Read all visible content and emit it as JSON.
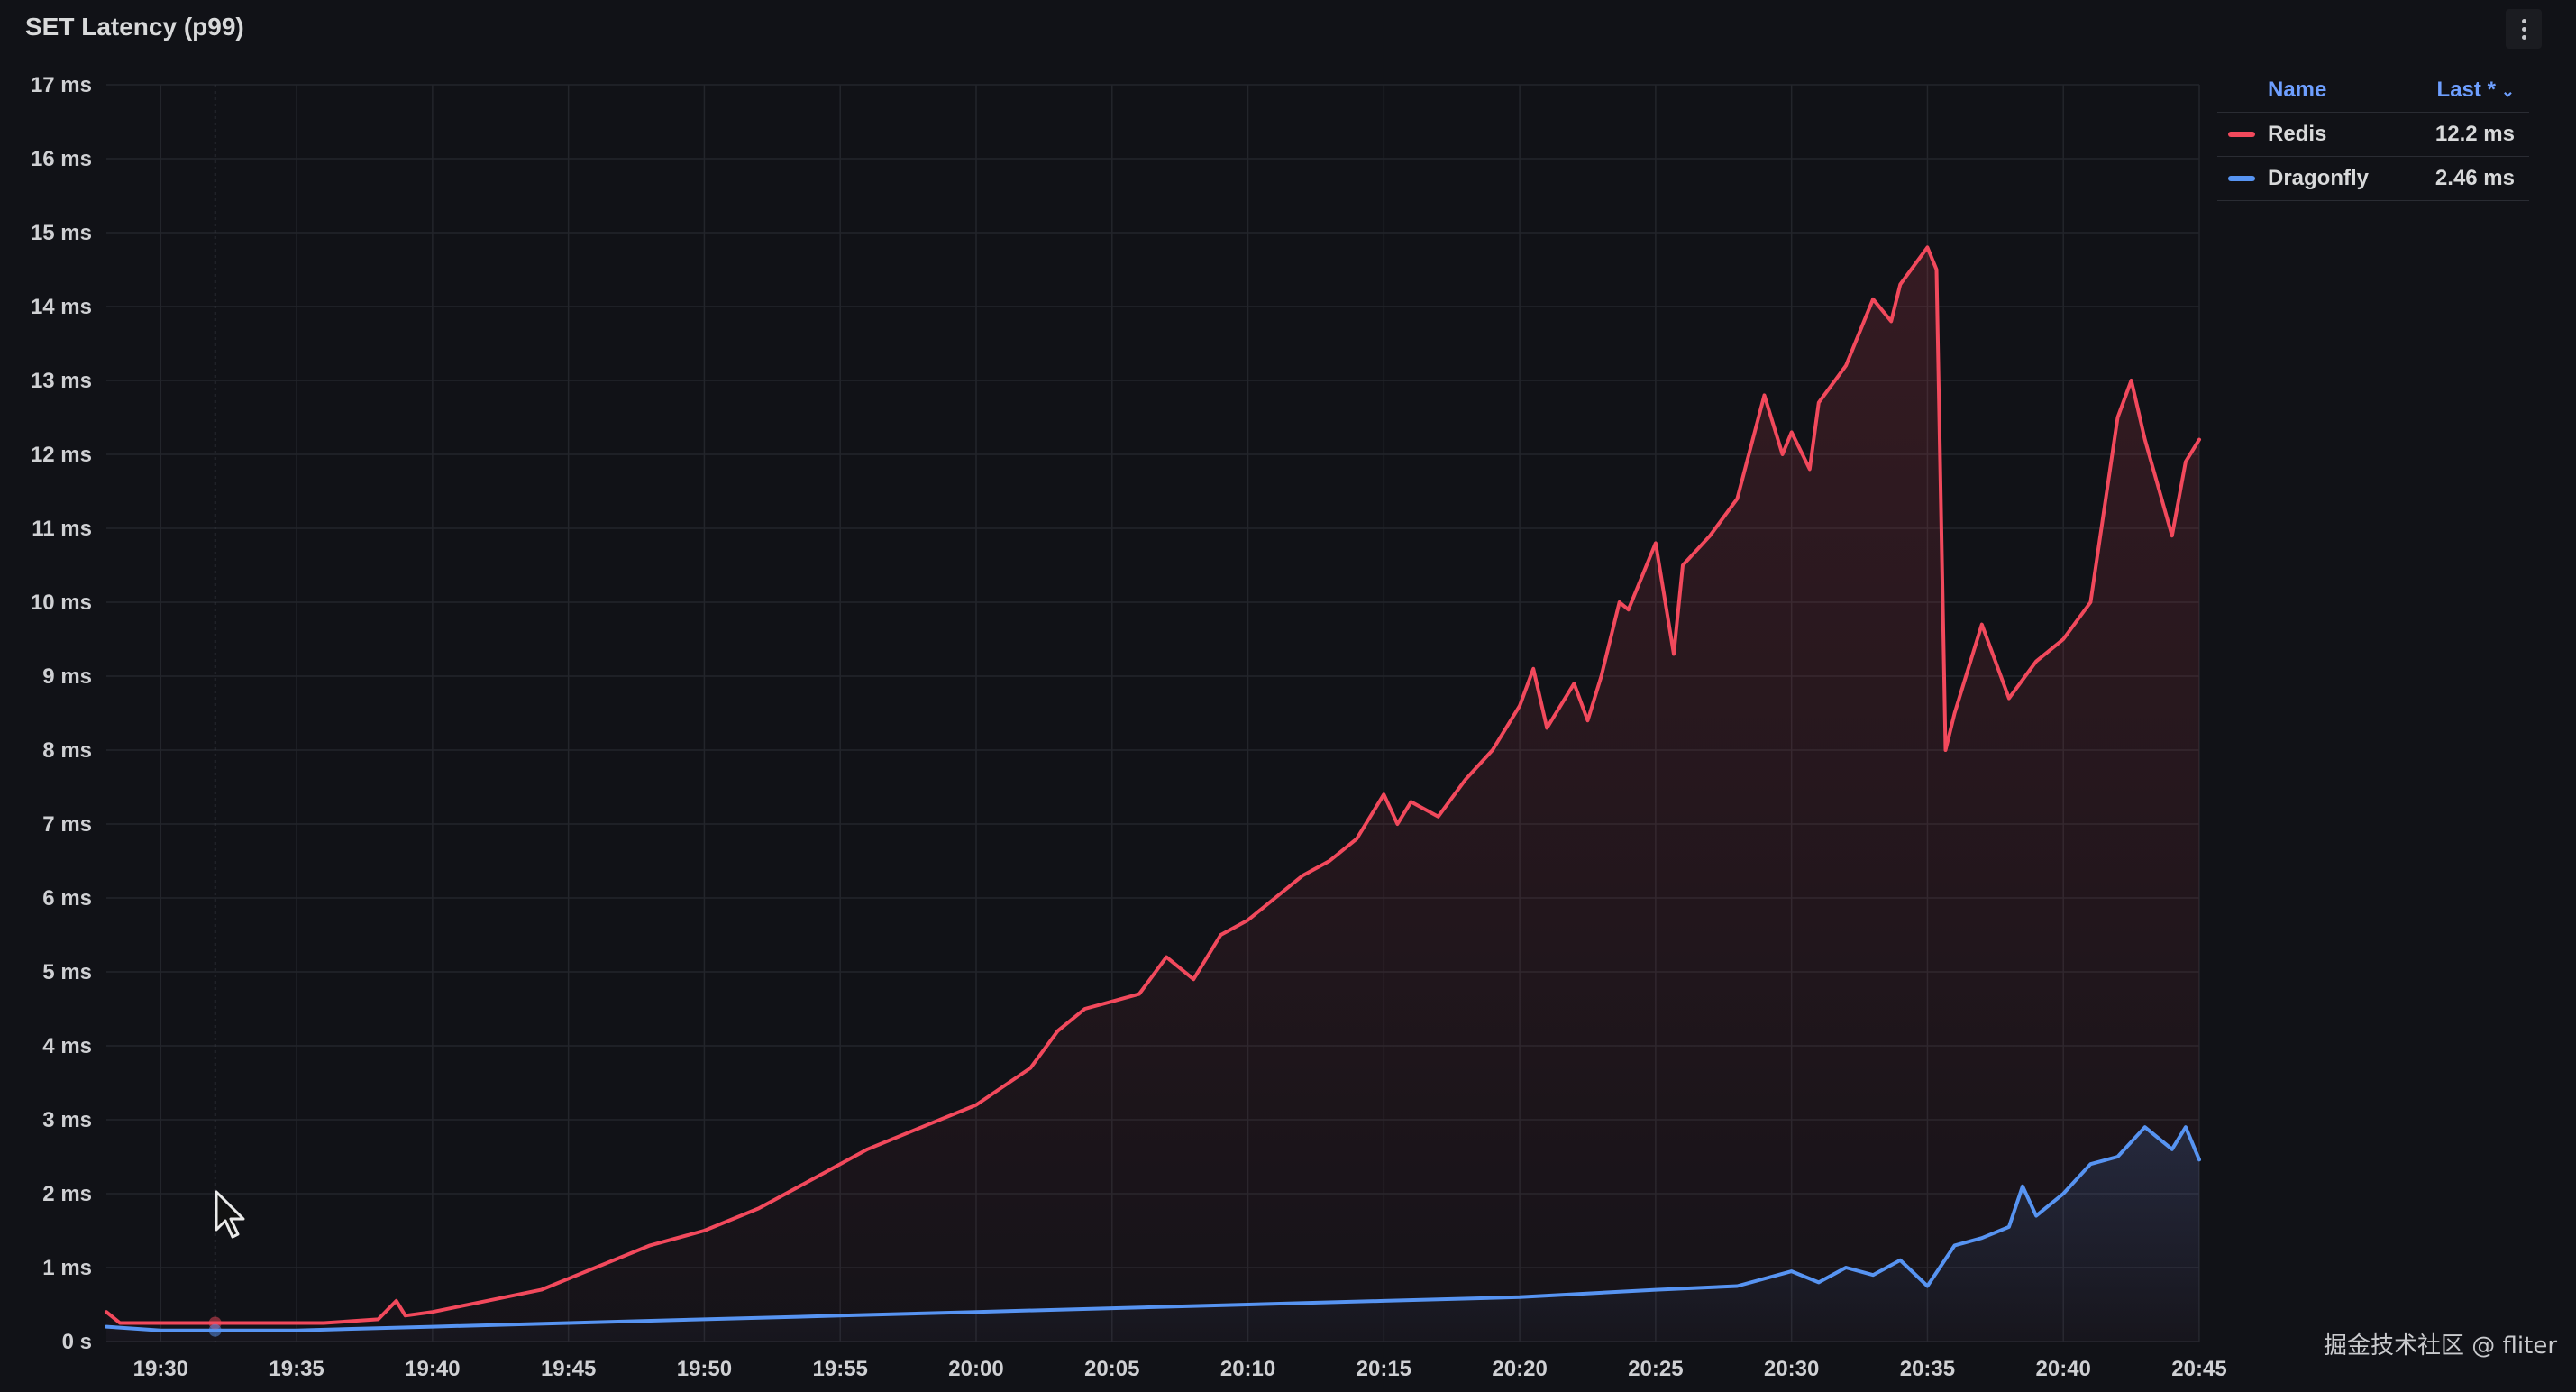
{
  "panel": {
    "title": "SET Latency (p99)"
  },
  "legend": {
    "name_header": "Name",
    "last_header": "Last *",
    "sort_icon": "chevron-down-icon",
    "series": [
      {
        "name": "Redis",
        "last": "12.2 ms",
        "color": "#f2495c"
      },
      {
        "name": "Dragonfly",
        "last": "2.46 ms",
        "color": "#5794f2"
      }
    ]
  },
  "watermark": "掘金技术社区 @ fliter",
  "chart_data": {
    "type": "line",
    "title": "SET Latency (p99)",
    "xlabel": "",
    "ylabel": "",
    "y_ticks": [
      "0 s",
      "1 ms",
      "2 ms",
      "3 ms",
      "4 ms",
      "5 ms",
      "6 ms",
      "7 ms",
      "8 ms",
      "9 ms",
      "10 ms",
      "11 ms",
      "12 ms",
      "13 ms",
      "14 ms",
      "15 ms",
      "16 ms",
      "17 ms"
    ],
    "x_ticks": [
      "19:30",
      "19:35",
      "19:40",
      "19:45",
      "19:50",
      "19:55",
      "20:00",
      "20:05",
      "20:10",
      "20:15",
      "20:20",
      "20:25",
      "20:30",
      "20:35",
      "20:40",
      "20:45"
    ],
    "ylim": [
      0,
      17
    ],
    "xlim": [
      "19:28",
      "20:45"
    ],
    "grid": true,
    "legend_position": "right",
    "series": [
      {
        "name": "Redis",
        "color": "#f2495c",
        "points": [
          [
            "19:28",
            0.4
          ],
          [
            "19:28:30",
            0.25
          ],
          [
            "19:30",
            0.25
          ],
          [
            "19:32",
            0.25
          ],
          [
            "19:34",
            0.25
          ],
          [
            "19:36",
            0.25
          ],
          [
            "19:38",
            0.3
          ],
          [
            "19:38:40",
            0.55
          ],
          [
            "19:39",
            0.35
          ],
          [
            "19:40",
            0.4
          ],
          [
            "19:42",
            0.55
          ],
          [
            "19:44",
            0.7
          ],
          [
            "19:46",
            1.0
          ],
          [
            "19:48",
            1.3
          ],
          [
            "19:50",
            1.5
          ],
          [
            "19:52",
            1.8
          ],
          [
            "19:54",
            2.2
          ],
          [
            "19:56",
            2.6
          ],
          [
            "19:58",
            2.9
          ],
          [
            "20:00",
            3.2
          ],
          [
            "20:02",
            3.7
          ],
          [
            "20:03",
            4.2
          ],
          [
            "20:04",
            4.5
          ],
          [
            "20:05",
            4.6
          ],
          [
            "20:06",
            4.7
          ],
          [
            "20:07",
            5.2
          ],
          [
            "20:08",
            4.9
          ],
          [
            "20:09",
            5.5
          ],
          [
            "20:10",
            5.7
          ],
          [
            "20:11",
            6.0
          ],
          [
            "20:12",
            6.3
          ],
          [
            "20:13",
            6.5
          ],
          [
            "20:14",
            6.8
          ],
          [
            "20:15",
            7.4
          ],
          [
            "20:15:30",
            7.0
          ],
          [
            "20:16",
            7.3
          ],
          [
            "20:17",
            7.1
          ],
          [
            "20:18",
            7.6
          ],
          [
            "20:19",
            8.0
          ],
          [
            "20:20",
            8.6
          ],
          [
            "20:20:30",
            9.1
          ],
          [
            "20:21",
            8.3
          ],
          [
            "20:22",
            8.9
          ],
          [
            "20:22:30",
            8.4
          ],
          [
            "20:23",
            9.0
          ],
          [
            "20:23:40",
            10.0
          ],
          [
            "20:24",
            9.9
          ],
          [
            "20:25",
            10.8
          ],
          [
            "20:25:40",
            9.3
          ],
          [
            "20:26",
            10.5
          ],
          [
            "20:27",
            10.9
          ],
          [
            "20:28",
            11.4
          ],
          [
            "20:29",
            12.8
          ],
          [
            "20:29:40",
            12.0
          ],
          [
            "20:30",
            12.3
          ],
          [
            "20:30:40",
            11.8
          ],
          [
            "20:31",
            12.7
          ],
          [
            "20:32",
            13.2
          ],
          [
            "20:33",
            14.1
          ],
          [
            "20:33:40",
            13.8
          ],
          [
            "20:34",
            14.3
          ],
          [
            "20:35",
            14.8
          ],
          [
            "20:35:20",
            14.5
          ],
          [
            "20:35:40",
            8.0
          ],
          [
            "20:36",
            8.5
          ],
          [
            "20:37",
            9.7
          ],
          [
            "20:38",
            8.7
          ],
          [
            "20:39",
            9.2
          ],
          [
            "20:40",
            9.5
          ],
          [
            "20:41",
            10.0
          ],
          [
            "20:42",
            12.5
          ],
          [
            "20:42:30",
            13.0
          ],
          [
            "20:43",
            12.2
          ],
          [
            "20:44",
            10.9
          ],
          [
            "20:44:30",
            11.9
          ],
          [
            "20:45",
            12.2
          ]
        ]
      },
      {
        "name": "Dragonfly",
        "color": "#5794f2",
        "points": [
          [
            "19:28",
            0.2
          ],
          [
            "19:30",
            0.15
          ],
          [
            "19:35",
            0.15
          ],
          [
            "19:40",
            0.2
          ],
          [
            "19:45",
            0.25
          ],
          [
            "19:50",
            0.3
          ],
          [
            "19:55",
            0.35
          ],
          [
            "20:00",
            0.4
          ],
          [
            "20:05",
            0.45
          ],
          [
            "20:10",
            0.5
          ],
          [
            "20:15",
            0.55
          ],
          [
            "20:20",
            0.6
          ],
          [
            "20:25",
            0.7
          ],
          [
            "20:28",
            0.75
          ],
          [
            "20:30",
            0.95
          ],
          [
            "20:31",
            0.8
          ],
          [
            "20:32",
            1.0
          ],
          [
            "20:33",
            0.9
          ],
          [
            "20:34",
            1.1
          ],
          [
            "20:35",
            0.75
          ],
          [
            "20:36",
            1.3
          ],
          [
            "20:37",
            1.4
          ],
          [
            "20:38",
            1.55
          ],
          [
            "20:38:30",
            2.1
          ],
          [
            "20:39",
            1.7
          ],
          [
            "20:40",
            2.0
          ],
          [
            "20:41",
            2.4
          ],
          [
            "20:42",
            2.5
          ],
          [
            "20:43",
            2.9
          ],
          [
            "20:44",
            2.6
          ],
          [
            "20:44:30",
            2.9
          ],
          [
            "20:45",
            2.46
          ]
        ]
      }
    ]
  }
}
